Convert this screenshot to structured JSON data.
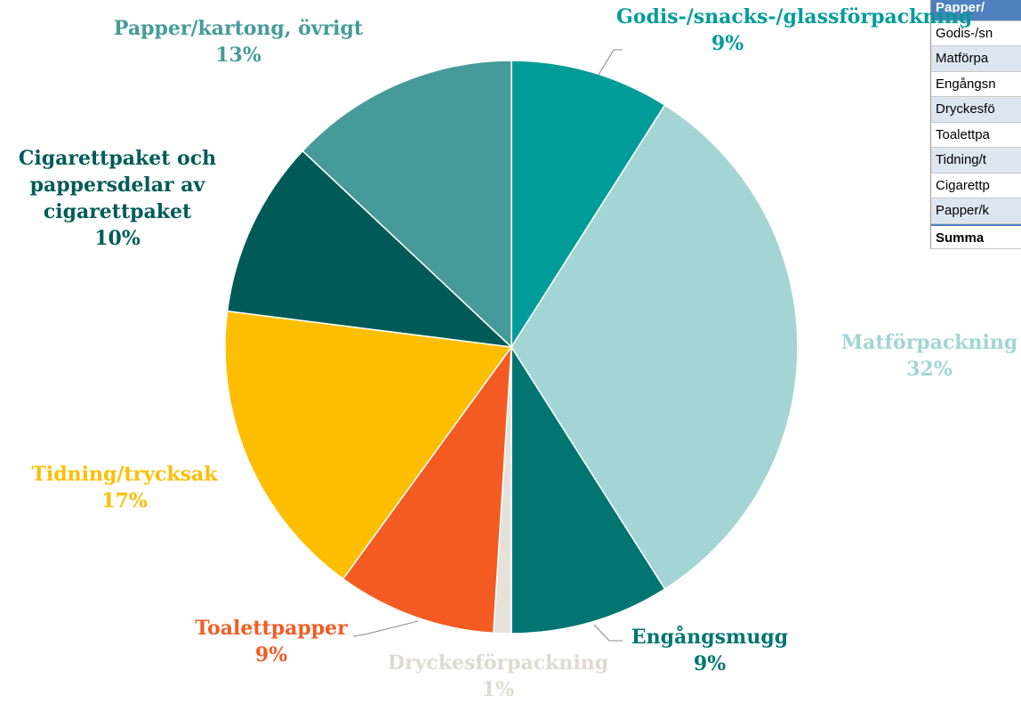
{
  "chart_data": {
    "type": "pie",
    "categories": [
      "Godis-/snacks-/glassförpackning",
      "Matförpackning",
      "Engångsmugg",
      "Dryckesförpackning",
      "Toalettpapper",
      "Tidning/trycksak",
      "Cigarettpaket och pappersdelar av cigarettpaket",
      "Papper/kartong, övrigt"
    ],
    "values": [
      9,
      32,
      9,
      1,
      9,
      17,
      10,
      13
    ],
    "value_labels": [
      "9%",
      "32%",
      "9%",
      "1%",
      "9%",
      "17%",
      "10%",
      "13%"
    ],
    "colors": [
      "#009c99",
      "#a2d5d4",
      "#007572",
      "#e6e2da",
      "#f45b22",
      "#fdbe00",
      "#005b58",
      "#469b9a"
    ]
  },
  "table": {
    "header": "Papper/",
    "rows": [
      "Godis-/sn",
      "Matförpa",
      "Engångsn",
      "Dryckesfö",
      "Toalettpa",
      "Tidning/t",
      "Cigarettp",
      "Papper/k"
    ],
    "footer": "Summa"
  }
}
